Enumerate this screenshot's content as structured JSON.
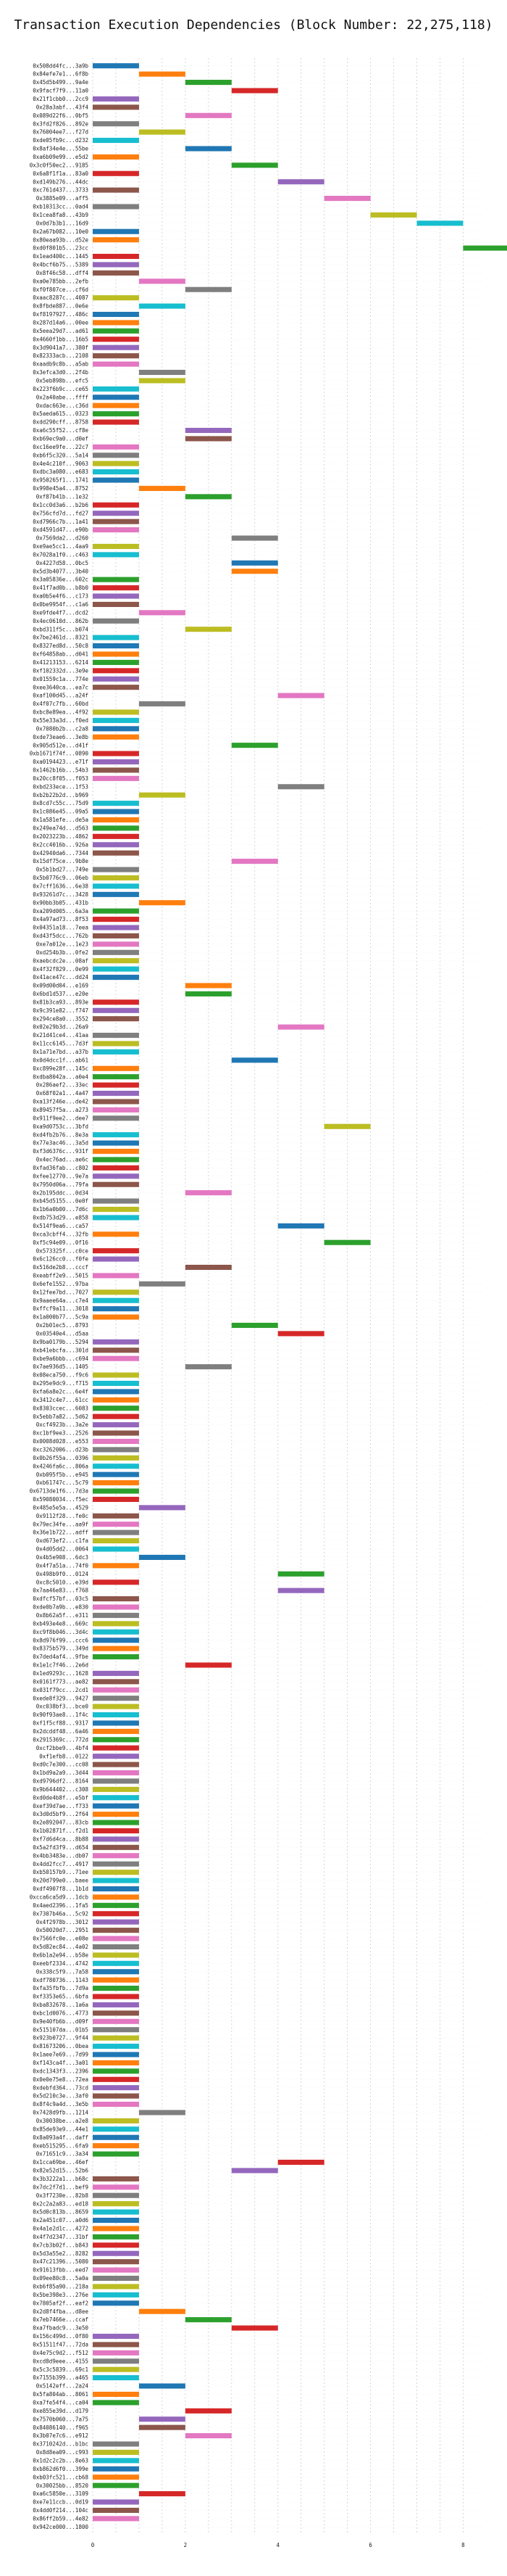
{
  "chart_data": {
    "type": "bar",
    "orientation": "horizontal",
    "title": "Transaction Execution Dependencies (Block Number: 22,275,118)",
    "xlabel": "",
    "ylabel": "",
    "xlim": [
      0,
      8.4
    ],
    "x_ticks": [
      0,
      2,
      4,
      6,
      8
    ],
    "grid": true,
    "legend": "none",
    "colors": [
      "#1f77b4",
      "#ff7f0e",
      "#2ca02c",
      "#d62728",
      "#9467bd",
      "#8c564b",
      "#e377c2",
      "#7f7f7f",
      "#bcbd22",
      "#17becf"
    ],
    "categories": [
      "0x508dd4fc...3a9b",
      "0x84efe7e1...6f8b",
      "0x45d5b499...9a4e",
      "0x9facf7f9...11a0",
      "0x21f1cbb0...2cc9",
      "0x28a3abf...43f4",
      "0x089d22f6...0bf5",
      "0x3fd2f826...892e",
      "0x76004ee7...f27d",
      "0xde05fb9c...d232",
      "0x8af34e4e...55be",
      "0xa6b09e99...e5d2",
      "0x3c0f50ec2...9185",
      "0x6a8f1f1a...83a0",
      "0xd149b276...44dc",
      "0xc761d437...3733",
      "0x3885e09...aff5",
      "0xb10313cc...0ad4",
      "0x1cea8fa8...43b9",
      "0x0d7b3b1...16d9",
      "0x2a67b082...10e0",
      "0x80eaa93b...d52e",
      "0xd0f801b5...23cc",
      "0x1ead400c...1445",
      "0x4bcf6b75...5389",
      "0x8f46c58...dff4",
      "0xa0e785bb...2efb",
      "0xf0f807ce...cf6d",
      "0xaac8287c...4087",
      "0x8fbde887...0e6e",
      "0xf8197927...486c",
      "0x287d14a6...00ee",
      "0x5eea29d7...ad61",
      "0x4660f1bb...16b5",
      "0x3d9041a7...380f",
      "0x82333acb...2108",
      "0xaadb9c8b...a5ab",
      "0x3efca3d0...2f4b",
      "0x5eb898b...efc5",
      "0x223f6b9c...ce65",
      "0x2a40abe...ffff",
      "0xdac663e...c36d",
      "0x5aeda615...0323",
      "0xdd290cff...8758",
      "0xa6c55f52...cf8e",
      "0xb69ec9a0...d0ef",
      "0xc16ee9fe...22c7",
      "0xb6f5c320...5a14",
      "0x4e4c210f...9063",
      "0xdbc3a080...e683",
      "0x950265f1...1741",
      "0x998e45a4...8752",
      "0xf87b41b...1e32",
      "0x1cc0d3a6...b2b6",
      "0x756cfd7d...fd27",
      "0xd7966c7b...1a41",
      "0xd4591d47...e90b",
      "0x7569da2...d260",
      "0xe9ae5cc1...4aa9",
      "0x7028a1f0...c463",
      "0x4227d58...0bc5",
      "0x5d3b4077...3b40",
      "0x3a05836e...602c",
      "0x41f7ad0b...b8b0",
      "0xa0b5e4f6...c173",
      "0x0be9954f...c1a6",
      "0xe9fde4f7...dcd2",
      "0x4ec0610d...862b",
      "0xbd311f5c...b074",
      "0x7be2461d...8321",
      "0x8327ed8d...50c8",
      "0xf64858ab...d041",
      "0x41213153...6214",
      "0xf102332d...3e9e",
      "0x01559c1a...774e",
      "0xee3640ca...ea7c",
      "0xaf100d45...a24f",
      "0x4f07c7fb...60bd",
      "0xbc8e89ea...4f92",
      "0x55e33a3d...f0ed",
      "0x7080b2b...c2a8",
      "0xde73eae6...3e8b",
      "0x905d512e...d41f",
      "0xb1671f74f...0890",
      "0xa0194423...e71f",
      "0x1462b16b...54b3",
      "0x20cc8f05...f053",
      "0xbd233ece...1f53",
      "0xb2b22b2d...b969",
      "0x8cd7c55c...75d9",
      "0x1c086e45...09a5",
      "0x1a581efe...de5a",
      "0x249ea74d...d563",
      "0x2023223b...4862",
      "0x2cc4016b...926a",
      "0x42940da6...7344",
      "0x15df75ce...9b8e",
      "0x5b1bd27...749e",
      "0x5b0776c9...06eb",
      "0x7cff1636...6e38",
      "0x93261d7c...3428",
      "0x90bb3b05...431b",
      "0xa209d005...6a3a",
      "0x4a97ad73...8f53",
      "0x04351a18...7eea",
      "0xd43f5dcc...762b",
      "0xe7a012e...1e23",
      "0xd254b3b...0fe2",
      "0xaebcdc2e...08af",
      "0x4f32f829...0e99",
      "0x41ace47c...dd24",
      "0x09d00d04...e169",
      "0x6bd1d537...e20e",
      "0x81b3ca93...893e",
      "0x9c391e82...f747",
      "0x294ce8a0...3552",
      "0x02e29b3d...26a9",
      "0x21d41ce4...41aa",
      "0x11cc6145...7d3f",
      "0x1a71e7bd...a37b",
      "0x0d4dcc1f...ab61",
      "0xc899e28f...145c",
      "0xdba8042a...a0e4",
      "0x286aef2...33ec",
      "0x68f02a1...4a47",
      "0xa13f246e...de42",
      "0x89457f5a...a273",
      "0x911f9ee2...dee7",
      "0xa9d0753c...3bfd",
      "0xd4fb2b76...8e3a",
      "0x77e3ac46...3a5d",
      "0xf3d6376c...931f",
      "0x4ec76ad...ae6c",
      "0xfad36fab...c802",
      "0xfee12770...9e7a",
      "0x7950d06a...79fa",
      "0x2b195ddc...0d34",
      "0xb45d5155...0e0f",
      "0x1b6a0b00...7d6c",
      "0xdb753d29...e858",
      "0x514f9ea6...ca57",
      "0xca3cbff4...32fb",
      "0xf5c94e09...0f16",
      "0x573325f...c0ce",
      "0x6c126cc0...f0fe",
      "0x516de2b8...cccf",
      "0xeabff2e9...5015",
      "0x6efe1552...97ba",
      "0x12fee7bd...7027",
      "0x9aaee64a...c7e4",
      "0xffcf9a11...3018",
      "0x1a000b77...5c9a",
      "0x2b01ec5...8793",
      "0x03540e4...d5aa",
      "0x9ba0179b...5294",
      "0xb41ebcfa...301d",
      "0xbe9a6bbb...c694",
      "0x7ae936d5...1405",
      "0x08eca750...f9c6",
      "0x295e9dc9...f715",
      "0xfa6a8e2c...6e4f",
      "0x3412c4e7...61cc",
      "0x8303ccec...6083",
      "0x5ebb7a82...5d62",
      "0xcf4923b...3a2e",
      "0xc1bf9ee3...2526",
      "0x0008d028...e553",
      "0xc3262006...d23b",
      "0x0b26f55a...0396",
      "0x4246fa6c...806a",
      "0xb095f5b...e945",
      "0xb61747c...5c79",
      "0x6713de1f6...7d3a",
      "0x59080034...f5ec",
      "0x485e5e5a...4529",
      "0x9112f28...fe0c",
      "0x79ec34fe...aa9f",
      "0x36e1b722...adff",
      "0xd673ef2...c1fa",
      "0x4d05dd2...0064",
      "0x4b5e908...6dc3",
      "0x4f7a51a...74f0",
      "0x498b9f0...0124",
      "0xc8c5010...e39d",
      "0x7aa46e83...f768",
      "0xdfcf57bf...03c5",
      "0xde0b7a9b...e830",
      "0x8b62a5f...e311",
      "0xb493e4e8...669c",
      "0xc9f8b046...3d4c",
      "0x8d976f99...ccc6",
      "0x8375b579...349d",
      "0x7ded4af4...9fbe",
      "0x1e1c7f46...2e6d",
      "0x1ed9293c...1628",
      "0x0161f773...ae82",
      "0x031f79cc...2cd1",
      "0xede8f329...9427",
      "0xc038bf3...bce0",
      "0x90f93ae8...1f4c",
      "0xf1f5cf88...9317",
      "0x2dcddf48...6a46",
      "0x2915369c...772d",
      "0xcf2bbe9...4bf4",
      "0xf1efb8...0122",
      "0xd0c7e300...cc08",
      "0x1bd9a2a9...3d44",
      "0xd9796df2...8164",
      "0x9b644402...c308",
      "0xd0de4b8f...e5bf",
      "0xef39d7ae...f733",
      "0x3d0d5bf9...2f64",
      "0x2e892047...83cb",
      "0x1b02871f...f2d1",
      "0xf7d6d4ca...8b88",
      "0x5a2fd3f9...d654",
      "0x4bb3483e...db07",
      "0x4dd2fcc7...4917",
      "0xb50157b9...71ee",
      "0x20d799e0...baee",
      "0xdf4907f8...1b1d",
      "0xcca6ca5d9...1dcb",
      "0x4aed2396...1fa5",
      "0x7307b46a...5c92",
      "0x4f2978b...3012",
      "0x50020d7...2951",
      "0x7566fc0e...e08e",
      "0x5d82ec84...4a02",
      "0x6b1a2e94...b58e",
      "0xeebf2334...4742",
      "0x338c5f9...7a58",
      "0xdf780736...1143",
      "0xfa35fbfb...7d9a",
      "0xf3353e65...6bfa",
      "0xba832678...1a6a",
      "0xbc1d0076...4773",
      "0x9e40fb6b...d09f",
      "0x515107da...01b5",
      "0x923b0727...9f44",
      "0x81673206...0bea",
      "0x1aee7e69...7d99",
      "0xf143ca4f...3a01",
      "0xdc1343f3...2396",
      "0x0e0e75e8...72ea",
      "0xdebfd364...73cd",
      "0x5d210c3e...3af0",
      "0x8f4c9a4d...3e5b",
      "0x7428d9fb...1214",
      "0x30038be...a2e8",
      "0x85de93e9...44e1",
      "0x8a093a4f...daff",
      "0xeb515295...6fa9",
      "0x71651c9...3a34",
      "0x1cca69be...46ef",
      "0x82e52d15...52b6",
      "0x3b3222a1...b68c",
      "0x7dc2f7d1...bef9",
      "0x3f7230e...82b8",
      "0x2c2a2a83...ed18",
      "0x5d0c813b...8659",
      "0x2a451c07...a0d6",
      "0x4a1e2d1c...4272",
      "0x4f7d2347...31bf",
      "0x7cb3b02f...b843",
      "0x5d3a55e2...8282",
      "0x47c21396...5080",
      "0x91613fbb...eed7",
      "0x09ee80c8...5a0a",
      "0xb6f85a90...218a",
      "0x5be398e3...276e",
      "0x7805af2f...eaf2",
      "0x2d8f4fba...d8ee",
      "0x7eb7466e...ccaf",
      "0xa7fbadc9...3e50",
      "0x156c499d...0f80",
      "0x51511f47...72da",
      "0x4e75c9d2...f512",
      "0xcd8d9eee...4155",
      "0x5c3c5839...69c1",
      "0x7155b399...a465",
      "0x5142eff...2a24",
      "0x5fa804ab...8061",
      "0xa7fe54f4...ca04",
      "0xe855e39d...d179",
      "0x7570b060...7a75",
      "0x84086140...f965",
      "0x3b07e7c6...e912",
      "0x3710242d...b1bc",
      "0x8d8ea09...c993",
      "0x1d2c2c2b...8e63",
      "0xb862d6f0...399e",
      "0xb03fc521...cb68",
      "0x30025bb...8520",
      "0xa6c5850e...3109",
      "0xe7e11ccb...0d19",
      "0x4dd0f214...104c",
      "0x86ff2b59...4e82",
      "0x942ce000...1800"
    ],
    "bars": [
      [
        0,
        1
      ],
      [
        1,
        2
      ],
      [
        2,
        3
      ],
      [
        3,
        4
      ],
      [
        0,
        1
      ],
      [
        0,
        1
      ],
      [
        2,
        3
      ],
      [
        0,
        1
      ],
      [
        1,
        2
      ],
      [
        0,
        1
      ],
      [
        2,
        3
      ],
      [
        0,
        1
      ],
      [
        3,
        4
      ],
      [
        0,
        1
      ],
      [
        4,
        5
      ],
      [
        0,
        1
      ],
      [
        5,
        6
      ],
      [
        0,
        1
      ],
      [
        6,
        7
      ],
      [
        7,
        8
      ],
      [
        0,
        1
      ],
      [
        0,
        1
      ],
      [
        8,
        9
      ],
      [
        0,
        1
      ],
      [
        0,
        1
      ],
      [
        0,
        1
      ],
      [
        1,
        2
      ],
      [
        2,
        3
      ],
      [
        0,
        1
      ],
      [
        1,
        2
      ],
      [
        0,
        1
      ],
      [
        0,
        1
      ],
      [
        0,
        1
      ],
      [
        0,
        1
      ],
      [
        0,
        1
      ],
      [
        0,
        1
      ],
      [
        0,
        1
      ],
      [
        1,
        2
      ],
      [
        1,
        2
      ],
      [
        0,
        1
      ],
      [
        0,
        1
      ],
      [
        0,
        1
      ],
      [
        0,
        1
      ],
      [
        0,
        1
      ],
      [
        2,
        3
      ],
      [
        2,
        3
      ],
      [
        0,
        1
      ],
      [
        0,
        1
      ],
      [
        0,
        1
      ],
      [
        0,
        1
      ],
      [
        0,
        1
      ],
      [
        1,
        2
      ],
      [
        2,
        3
      ],
      [
        0,
        1
      ],
      [
        0,
        1
      ],
      [
        0,
        1
      ],
      [
        0,
        1
      ],
      [
        3,
        4
      ],
      [
        0,
        1
      ],
      [
        0,
        1
      ],
      [
        3,
        4
      ],
      [
        3,
        4
      ],
      [
        0,
        1
      ],
      [
        0,
        1
      ],
      [
        0,
        1
      ],
      [
        0,
        1
      ],
      [
        1,
        2
      ],
      [
        0,
        1
      ],
      [
        2,
        3
      ],
      [
        0,
        1
      ],
      [
        0,
        1
      ],
      [
        0,
        1
      ],
      [
        0,
        1
      ],
      [
        0,
        1
      ],
      [
        0,
        1
      ],
      [
        0,
        1
      ],
      [
        4,
        5
      ],
      [
        1,
        2
      ],
      [
        0,
        1
      ],
      [
        0,
        1
      ],
      [
        0,
        1
      ],
      [
        0,
        1
      ],
      [
        3,
        4
      ],
      [
        0,
        1
      ],
      [
        0,
        1
      ],
      [
        0,
        1
      ],
      [
        0,
        1
      ],
      [
        4,
        5
      ],
      [
        1,
        2
      ],
      [
        0,
        1
      ],
      [
        0,
        1
      ],
      [
        0,
        1
      ],
      [
        0,
        1
      ],
      [
        0,
        1
      ],
      [
        0,
        1
      ],
      [
        0,
        1
      ],
      [
        3,
        4
      ],
      [
        0,
        1
      ],
      [
        0,
        1
      ],
      [
        0,
        1
      ],
      [
        0,
        1
      ],
      [
        1,
        2
      ],
      [
        0,
        1
      ],
      [
        0,
        1
      ],
      [
        0,
        1
      ],
      [
        0,
        1
      ],
      [
        0,
        1
      ],
      [
        0,
        1
      ],
      [
        0,
        1
      ],
      [
        0,
        1
      ],
      [
        0,
        1
      ],
      [
        2,
        3
      ],
      [
        2,
        3
      ],
      [
        0,
        1
      ],
      [
        0,
        1
      ],
      [
        0,
        1
      ],
      [
        4,
        5
      ],
      [
        0,
        1
      ],
      [
        0,
        1
      ],
      [
        0,
        1
      ],
      [
        3,
        4
      ],
      [
        0,
        1
      ],
      [
        0,
        1
      ],
      [
        0,
        1
      ],
      [
        0,
        1
      ],
      [
        0,
        1
      ],
      [
        0,
        1
      ],
      [
        0,
        1
      ],
      [
        5,
        6
      ],
      [
        0,
        1
      ],
      [
        0,
        1
      ],
      [
        0,
        1
      ],
      [
        0,
        1
      ],
      [
        0,
        1
      ],
      [
        0,
        1
      ],
      [
        0,
        1
      ],
      [
        2,
        3
      ],
      [
        0,
        1
      ],
      [
        0,
        1
      ],
      [
        0,
        1
      ],
      [
        4,
        5
      ],
      [
        0,
        1
      ],
      [
        5,
        6
      ],
      [
        0,
        1
      ],
      [
        0,
        1
      ],
      [
        2,
        3
      ],
      [
        0,
        1
      ],
      [
        1,
        2
      ],
      [
        0,
        1
      ],
      [
        0,
        1
      ],
      [
        0,
        1
      ],
      [
        0,
        1
      ],
      [
        3,
        4
      ],
      [
        4,
        5
      ],
      [
        0,
        1
      ],
      [
        0,
        1
      ],
      [
        0,
        1
      ],
      [
        2,
        3
      ],
      [
        0,
        1
      ],
      [
        0,
        1
      ],
      [
        0,
        1
      ],
      [
        0,
        1
      ],
      [
        0,
        1
      ],
      [
        0,
        1
      ],
      [
        0,
        1
      ],
      [
        0,
        1
      ],
      [
        0,
        1
      ],
      [
        0,
        1
      ],
      [
        0,
        1
      ],
      [
        0,
        1
      ],
      [
        0,
        1
      ],
      [
        0,
        1
      ],
      [
        0,
        1
      ],
      [
        0,
        1
      ],
      [
        1,
        2
      ],
      [
        0,
        1
      ],
      [
        0,
        1
      ],
      [
        0,
        1
      ],
      [
        0,
        1
      ],
      [
        0,
        1
      ],
      [
        1,
        2
      ],
      [
        0,
        1
      ],
      [
        4,
        5
      ],
      [
        0,
        1
      ],
      [
        4,
        5
      ],
      [
        0,
        1
      ],
      [
        0,
        1
      ],
      [
        0,
        1
      ],
      [
        0,
        1
      ],
      [
        0,
        1
      ],
      [
        0,
        1
      ],
      [
        0,
        1
      ],
      [
        0,
        1
      ],
      [
        2,
        3
      ],
      [
        0,
        1
      ],
      [
        0,
        1
      ],
      [
        0,
        1
      ],
      [
        0,
        1
      ],
      [
        0,
        1
      ],
      [
        0,
        1
      ],
      [
        0,
        1
      ],
      [
        0,
        1
      ],
      [
        0,
        1
      ],
      [
        0,
        1
      ],
      [
        0,
        1
      ],
      [
        0,
        1
      ],
      [
        0,
        1
      ],
      [
        0,
        1
      ],
      [
        0,
        1
      ],
      [
        0,
        1
      ],
      [
        0,
        1
      ],
      [
        0,
        1
      ],
      [
        0,
        1
      ],
      [
        0,
        1
      ],
      [
        0,
        1
      ],
      [
        0,
        1
      ],
      [
        0,
        1
      ],
      [
        0,
        1
      ],
      [
        0,
        1
      ],
      [
        0,
        1
      ],
      [
        0,
        1
      ],
      [
        0,
        1
      ],
      [
        0,
        1
      ],
      [
        0,
        1
      ],
      [
        0,
        1
      ],
      [
        0,
        1
      ],
      [
        0,
        1
      ],
      [
        0,
        1
      ],
      [
        0,
        1
      ],
      [
        0,
        1
      ],
      [
        0,
        1
      ],
      [
        0,
        1
      ],
      [
        0,
        1
      ],
      [
        0,
        1
      ],
      [
        0,
        1
      ],
      [
        0,
        1
      ],
      [
        0,
        1
      ],
      [
        0,
        1
      ],
      [
        0,
        1
      ],
      [
        0,
        1
      ],
      [
        0,
        1
      ],
      [
        0,
        1
      ],
      [
        0,
        1
      ],
      [
        0,
        1
      ],
      [
        0,
        1
      ],
      [
        0,
        1
      ],
      [
        0,
        1
      ],
      [
        1,
        2
      ],
      [
        0,
        1
      ],
      [
        0,
        1
      ],
      [
        0,
        1
      ],
      [
        0,
        1
      ],
      [
        0,
        1
      ],
      [
        4,
        5
      ],
      [
        3,
        4
      ],
      [
        0,
        1
      ],
      [
        0,
        1
      ],
      [
        0,
        1
      ],
      [
        0,
        1
      ],
      [
        0,
        1
      ],
      [
        0,
        1
      ],
      [
        0,
        1
      ],
      [
        0,
        1
      ],
      [
        0,
        1
      ],
      [
        0,
        1
      ],
      [
        0,
        1
      ],
      [
        0,
        1
      ],
      [
        0,
        1
      ],
      [
        0,
        1
      ],
      [
        0,
        1
      ],
      [
        0,
        1
      ],
      [
        1,
        2
      ],
      [
        2,
        3
      ],
      [
        3,
        4
      ],
      [
        0,
        1
      ],
      [
        0,
        1
      ],
      [
        0,
        1
      ],
      [
        0,
        1
      ],
      [
        0,
        1
      ],
      [
        0,
        1
      ],
      [
        1,
        2
      ],
      [
        0,
        1
      ],
      [
        0,
        1
      ],
      [
        2,
        3
      ],
      [
        1,
        2
      ],
      [
        1,
        2
      ],
      [
        2,
        3
      ],
      [
        0,
        1
      ],
      [
        0,
        1
      ],
      [
        0,
        1
      ],
      [
        0,
        1
      ],
      [
        0,
        1
      ],
      [
        0,
        1
      ],
      [
        1,
        2
      ],
      [
        0,
        1
      ],
      [
        0,
        1
      ],
      [
        0,
        1
      ]
    ]
  }
}
